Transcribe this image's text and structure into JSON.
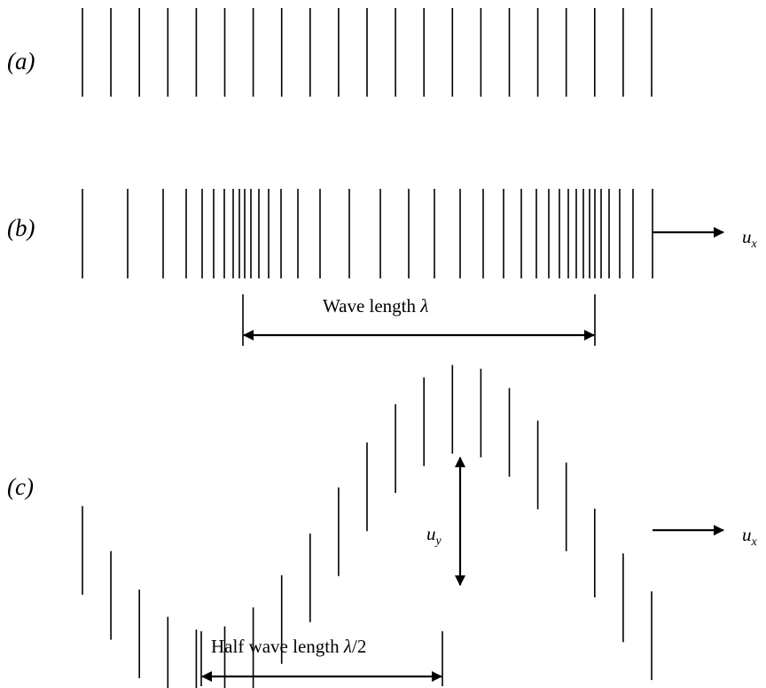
{
  "panels": {
    "a": "(a)",
    "b": "(b)",
    "c": "(c)"
  },
  "labels": {
    "wave_length_text": "Wave length ",
    "lambda": "λ",
    "half_wave_length_text": "Half wave length ",
    "half_wave_suffix": "/2",
    "u": "u",
    "x": "x",
    "y": "y"
  },
  "colors": {
    "ink": "#000000",
    "background": "#ffffff"
  }
}
